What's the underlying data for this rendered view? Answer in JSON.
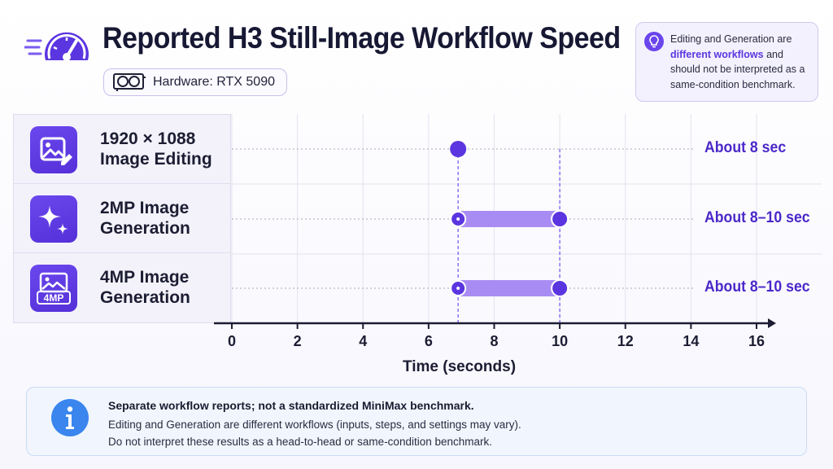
{
  "header": {
    "title": "Reported H3 Still-Image Workflow Speed",
    "hardware_label": "Hardware: RTX 5090",
    "icons": [
      "speedometer-icon",
      "gpu-card-icon"
    ]
  },
  "note": {
    "before": "Editing and Generation are ",
    "highlight": "different workflows",
    "after": " and should not be interpreted as a same-condition benchmark.",
    "icon": "lightbulb-icon"
  },
  "colors": {
    "accent": "#5b35e0",
    "bar": "#a98cf3",
    "value_text": "#4b28c9"
  },
  "chart_data": {
    "type": "range",
    "xlabel": "Time (seconds)",
    "xlim": [
      0,
      16
    ],
    "xticks": [
      0,
      2,
      4,
      6,
      8,
      10,
      12,
      14,
      16
    ],
    "grid": true,
    "rows": [
      {
        "line1": "1920 × 1088",
        "line2": "Image Editing",
        "icon": "image-edit-icon",
        "start": 6.9,
        "end": 6.9,
        "value_label": "About 8 sec"
      },
      {
        "line1": "2MP Image",
        "line2": "Generation",
        "icon": "sparkle-icon",
        "start": 6.9,
        "end": 10,
        "value_label": "About 8–10 sec"
      },
      {
        "line1": "4MP Image",
        "line2": "Generation",
        "icon": "image-4mp-icon",
        "icon_text": "4MP",
        "start": 6.9,
        "end": 10,
        "value_label": "About 8–10 sec"
      }
    ]
  },
  "footer": {
    "line1": "Separate workflow reports; not a standardized MiniMax benchmark.",
    "line2": "Editing and Generation are different workflows (inputs, steps, and settings may vary).",
    "line3": "Do not interpret these results as a head-to-head or same-condition benchmark.",
    "icon": "info-icon"
  }
}
